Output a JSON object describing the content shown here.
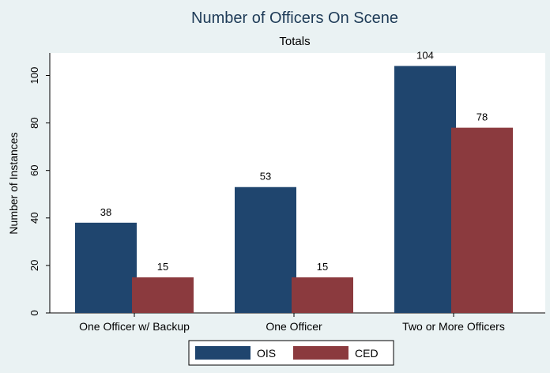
{
  "chart_data": {
    "type": "bar",
    "title": "Number of Officers On Scene",
    "subtitle": "Totals",
    "xlabel": "",
    "ylabel": "Number of Instances",
    "categories": [
      "One Officer w/ Backup",
      "One Officer",
      "Two or More Officers"
    ],
    "series": [
      {
        "name": "OIS",
        "values": [
          38,
          53,
          104
        ],
        "color": "#1f456e"
      },
      {
        "name": "CED",
        "values": [
          15,
          15,
          78
        ],
        "color": "#8b3a3e"
      }
    ],
    "ylim": [
      0,
      110
    ],
    "yticks": [
      0,
      20,
      40,
      60,
      80,
      100
    ],
    "grid": false,
    "legend_position": "bottom"
  },
  "colors": {
    "background": "#eaf2f3",
    "plot_background": "#ffffff",
    "text": "#1e3b57"
  }
}
